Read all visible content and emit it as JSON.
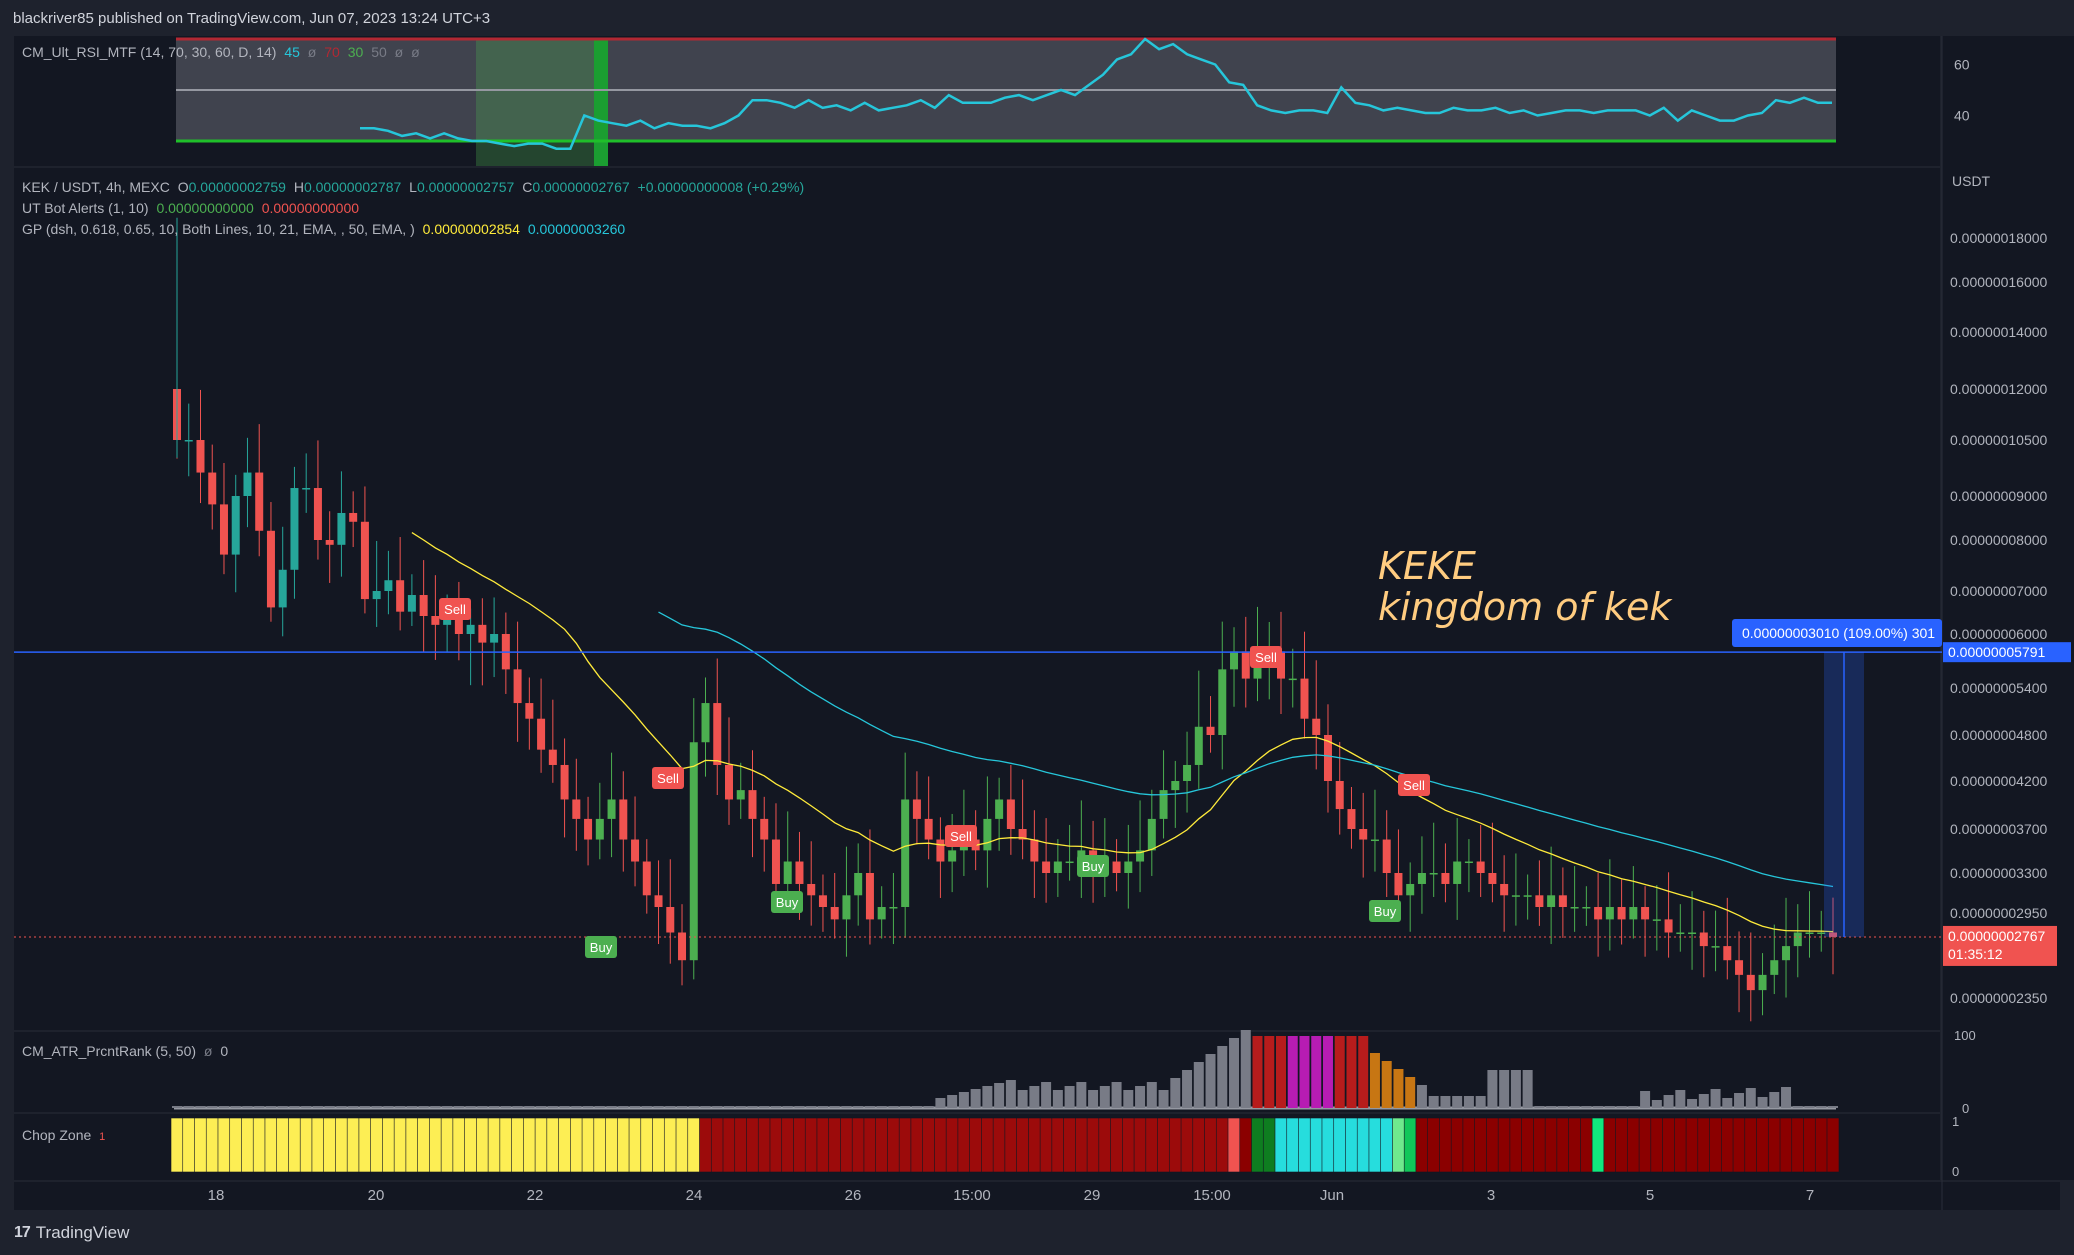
{
  "header": {
    "published": "blackriver85 published on TradingView.com, Jun 07, 2023 13:24 UTC+3"
  },
  "footer": {
    "brand": "TradingView",
    "logo": "tradingview-logo-icon"
  },
  "rsi_legend": {
    "name": "CM_Ult_RSI_MTF (14, 70, 30, 60, D, 14)",
    "v1": "45",
    "v2": "ø",
    "v3": "70",
    "v4": "30",
    "v5": "50",
    "v6": "ø",
    "v7": "ø"
  },
  "main_legend": {
    "symbol": "KEK / USDT, 4h, MEXC",
    "o_label": "O",
    "o": "0.00000002759",
    "h_label": "H",
    "h": "0.00000002787",
    "l_label": "L",
    "l": "0.00000002757",
    "c_label": "C",
    "c": "0.00000002767",
    "change": "+0.00000000008 (+0.29%)",
    "ut_name": "UT Bot Alerts (1, 10)",
    "ut_v1": "0.00000000000",
    "ut_v2": "0.00000000000",
    "gp_name": "GP (dsh, 0.618, 0.65, 10, Both Lines, 10, 21, EMA, , 50, EMA, )",
    "gp_v1": "0.00000002854",
    "gp_v2": "0.00000003260"
  },
  "atr_legend": {
    "name": "CM_ATR_PrcntRank (5, 50)",
    "v1": "ø",
    "v2": "0"
  },
  "chop_legend": {
    "name": "Chop Zone",
    "v1": "1"
  },
  "annotation": {
    "line1": "KEKE",
    "line2": "kingdom of kek"
  },
  "measure_label": "0.00000003010 (109.00%) 301",
  "colors": {
    "up": "#26a69a",
    "up_green": "#4caf50",
    "down": "#f05350",
    "bg": "#131722",
    "ema_yellow": "#ffeb3b",
    "ema_blue": "#26c6da",
    "rsi_line": "#26c6da",
    "sell": "#f05350",
    "buy": "#4caf50",
    "price_line": "#2962ff",
    "current_price": "#f05350"
  },
  "chart_data": [
    {
      "id": "price",
      "type": "candlestick",
      "title": "KEK / USDT, 4h, MEXC",
      "yaxis_unit": "USDT",
      "scale": "log",
      "yticks": [
        "0.00000018000",
        "0.00000016000",
        "0.00000014000",
        "0.00000012000",
        "0.00000010500",
        "0.00000009000",
        "0.00000008000",
        "0.00000007000",
        "0.00000006000",
        "0.00000005400",
        "0.00000004800",
        "0.00000004200",
        "0.00000003700",
        "0.00000003300",
        "0.00000002950",
        "0.00000002350"
      ],
      "xticks": [
        "18",
        "20",
        "22",
        "24",
        "26",
        "15:00",
        "29",
        "15:00",
        "Jun",
        "3",
        "5",
        "7"
      ],
      "horizontal_line": "0.00000005791",
      "current_price": "0.00000002767",
      "countdown": "01:35:12",
      "signals": [
        {
          "label": "Sell",
          "day": "May 21"
        },
        {
          "label": "Buy",
          "day": "May 22"
        },
        {
          "label": "Sell",
          "day": "May 23"
        },
        {
          "label": "Buy",
          "day": "May 25"
        },
        {
          "label": "Sell",
          "day": "May 27"
        },
        {
          "label": "Buy",
          "day": "May 28"
        },
        {
          "label": "Sell",
          "day": "May 30"
        },
        {
          "label": "Buy",
          "day": "Jun 1"
        },
        {
          "label": "Sell",
          "day": "Jun 1"
        }
      ]
    },
    {
      "id": "rsi",
      "type": "line",
      "title": "CM_Ult_RSI_MTF (14, 70, 30, 60, D, 14)",
      "yticks": [
        "60",
        "40"
      ],
      "bands": [
        70,
        50,
        30
      ],
      "values": [
        35,
        35,
        34,
        32,
        33,
        31,
        33,
        31,
        30,
        30,
        29,
        28,
        29,
        29,
        27,
        27,
        40,
        38,
        37,
        36,
        38,
        35,
        37,
        36,
        36,
        35,
        37,
        40,
        46,
        46,
        45,
        43,
        46,
        43,
        44,
        42,
        45,
        42,
        43,
        44,
        46,
        43,
        48,
        45,
        45,
        45,
        47,
        48,
        46,
        48,
        50,
        48,
        52,
        56,
        62,
        64,
        70,
        66,
        68,
        64,
        62,
        60,
        53,
        52,
        44,
        42,
        41,
        42,
        42,
        41,
        51,
        45,
        44,
        42,
        43,
        42,
        41,
        41,
        43,
        42,
        42,
        43,
        41,
        42,
        40,
        41,
        42,
        42,
        41,
        42,
        42,
        42,
        40,
        43,
        38,
        42,
        40,
        38,
        38,
        40,
        41,
        46,
        45,
        47,
        45,
        45
      ]
    },
    {
      "id": "atr",
      "type": "bar",
      "title": "CM_ATR_PrcntRank (5, 50)",
      "yticks": [
        "100",
        "0"
      ]
    },
    {
      "id": "chop",
      "type": "bar",
      "title": "Chop Zone",
      "yticks": [
        "1",
        "0"
      ]
    }
  ]
}
